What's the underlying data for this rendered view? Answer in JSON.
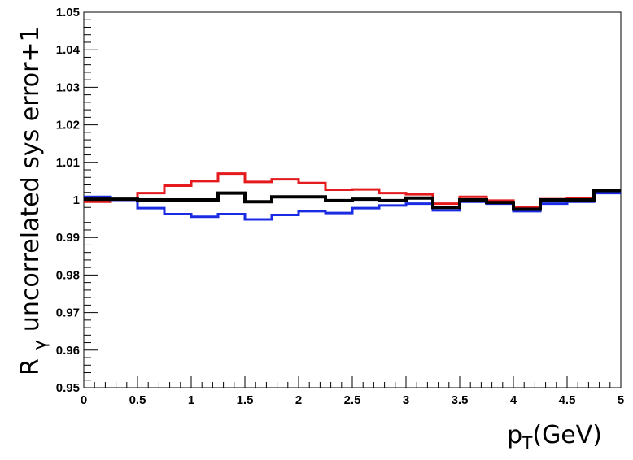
{
  "chart_data": {
    "type": "line",
    "xlabel_main": "p",
    "xlabel_sub": "T",
    "xlabel_tail": "(GeV)",
    "ylabel_main": "R",
    "ylabel_sub": "γ",
    "ylabel_tail": "uncorrelated sys error+1",
    "xlim": [
      0,
      5
    ],
    "ylim": [
      0.95,
      1.05
    ],
    "grid": false,
    "x_ticks": [
      "0",
      "0.5",
      "1",
      "1.5",
      "2",
      "2.5",
      "3",
      "3.5",
      "4",
      "4.5",
      "5"
    ],
    "y_ticks": [
      "0.95",
      "0.96",
      "0.97",
      "0.98",
      "0.99",
      "1",
      "1.01",
      "1.02",
      "1.03",
      "1.04",
      "1.05"
    ],
    "bin_edges": [
      0,
      0.25,
      0.5,
      0.75,
      1,
      1.25,
      1.5,
      1.75,
      2,
      2.25,
      2.5,
      2.75,
      3,
      3.25,
      3.5,
      3.75,
      4,
      4.25,
      4.5,
      4.75,
      5
    ],
    "series": [
      {
        "color": "#e41a1c",
        "values": [
          0.9995,
          1.0002,
          1.0018,
          1.0038,
          1.005,
          1.007,
          1.0048,
          1.0055,
          1.0045,
          1.0027,
          1.0028,
          1.0018,
          1.0015,
          0.999,
          1.0008,
          0.9998,
          0.998,
          1.0002,
          1.0005,
          1.0025
        ]
      },
      {
        "color": "#1a2be4",
        "values": [
          1.0008,
          1.0,
          0.9978,
          0.9962,
          0.9955,
          0.9962,
          0.9948,
          0.996,
          0.997,
          0.9965,
          0.9978,
          0.9985,
          0.999,
          0.9972,
          0.9995,
          0.999,
          0.997,
          0.999,
          0.9995,
          1.0018
        ]
      },
      {
        "color": "#000000",
        "values": [
          1.0002,
          1.0002,
          1.0,
          1.0,
          1.0,
          1.0018,
          0.9995,
          1.0008,
          1.0008,
          0.9998,
          1.0002,
          0.9998,
          1.0005,
          0.998,
          1.0,
          0.9993,
          0.9975,
          1.0,
          1.0,
          1.0025
        ]
      }
    ]
  }
}
